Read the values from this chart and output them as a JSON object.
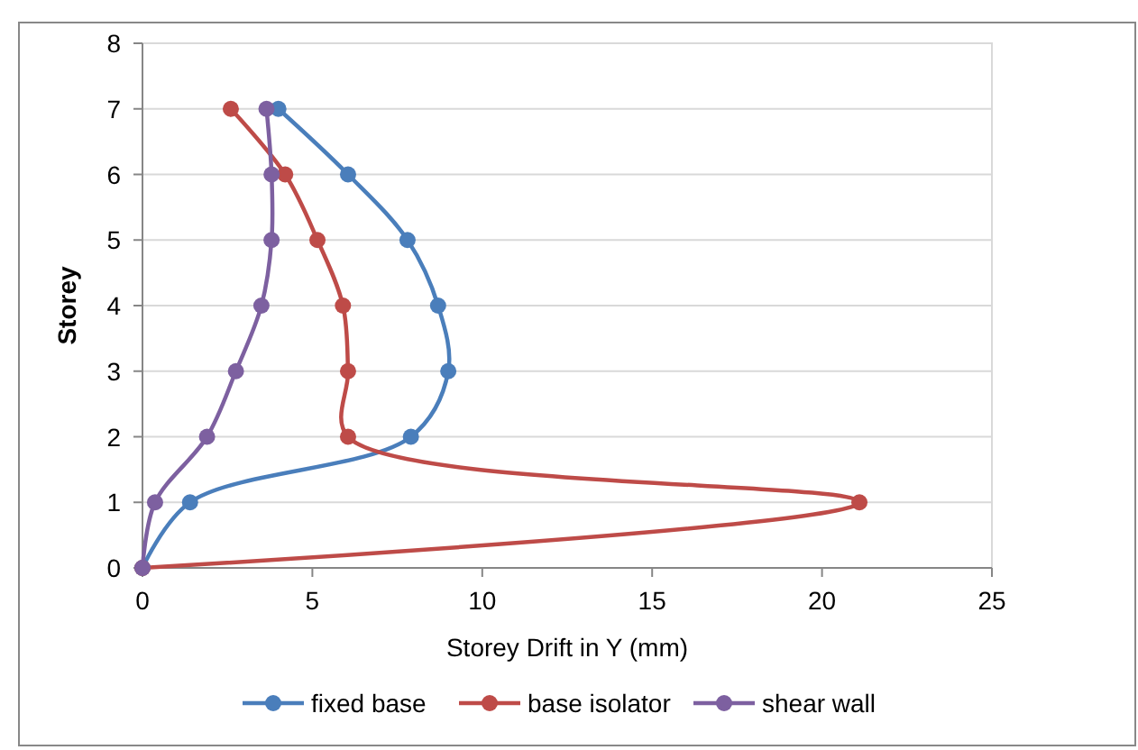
{
  "chart_data": {
    "type": "line",
    "xlabel": "Storey Drift in Y (mm)",
    "ylabel": "Storey",
    "xlim": [
      0,
      25
    ],
    "xticks": [
      0,
      5,
      10,
      15,
      20,
      25
    ],
    "ylim": [
      0,
      8
    ],
    "yticks": [
      0,
      1,
      2,
      3,
      4,
      5,
      6,
      7,
      8
    ],
    "grid": "y",
    "legend": "bottom",
    "marker": "circle",
    "line_style": "solid",
    "series": [
      {
        "name": "fixed base",
        "color": "#4a7ebb",
        "x": [
          0,
          1.4,
          7.9,
          9.0,
          8.7,
          7.8,
          6.05,
          4.0
        ],
        "values": [
          0,
          1,
          2,
          3,
          4,
          5,
          6,
          7
        ]
      },
      {
        "name": "base isolator",
        "color": "#be4b48",
        "x": [
          0,
          21.1,
          6.05,
          6.05,
          5.9,
          5.15,
          4.2,
          2.6
        ],
        "values": [
          0,
          1,
          2,
          3,
          4,
          5,
          6,
          7
        ]
      },
      {
        "name": "shear wall",
        "color": "#7d60a0",
        "x": [
          0,
          0.37,
          1.9,
          2.75,
          3.5,
          3.8,
          3.8,
          3.65
        ],
        "values": [
          0,
          1,
          2,
          3,
          4,
          5,
          6,
          7
        ]
      }
    ]
  }
}
